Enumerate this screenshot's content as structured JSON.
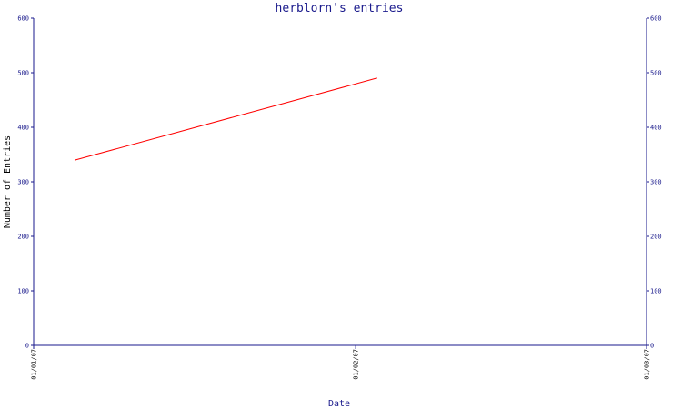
{
  "chart_data": {
    "type": "line",
    "title": "herblorn's entries",
    "xlabel": "Date",
    "ylabel": "Number of Entries",
    "ylim": [
      0,
      600
    ],
    "yticks": [
      0,
      100,
      200,
      300,
      400,
      500,
      600
    ],
    "xlim": [
      "2007-01-01",
      "2007-03-01"
    ],
    "xtick_labels": [
      "01/01/07",
      "01/02/07",
      "01/03/07"
    ],
    "xtick_dates": [
      "2007-01-01",
      "2007-02-01",
      "2007-03-01"
    ],
    "grid": false,
    "series": [
      {
        "color": "#ff0000",
        "x": [
          "2007-01-05",
          "2007-02-03"
        ],
        "y": [
          340,
          490
        ]
      }
    ],
    "colors": {
      "axis": "#1a1a8c",
      "line": "#ff0000",
      "background": "#ffffff"
    }
  }
}
